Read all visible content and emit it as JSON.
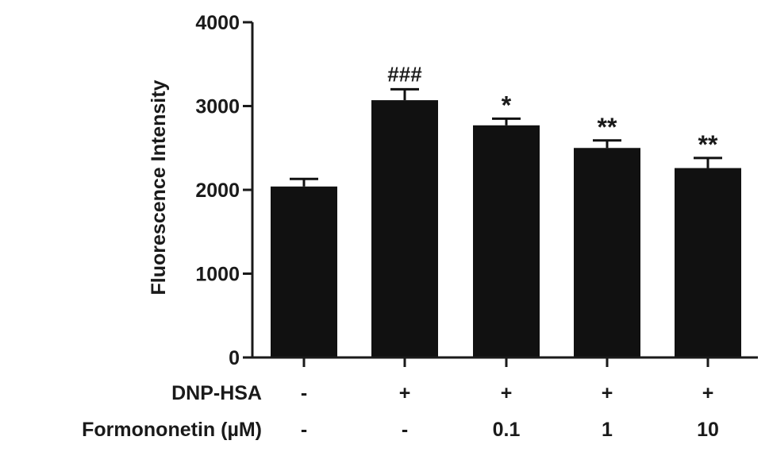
{
  "chart_data": {
    "type": "bar",
    "ylabel": "Fluorescence Intensity",
    "xlabel": "",
    "ylim": [
      0,
      4000
    ],
    "yticks": [
      0,
      1000,
      2000,
      3000,
      4000
    ],
    "grid": false,
    "bar_color": "#111111",
    "values": [
      2040,
      3070,
      2770,
      2500,
      2260
    ],
    "errors": [
      90,
      130,
      80,
      90,
      120
    ],
    "significance": [
      "",
      "###",
      "*",
      "**",
      "**"
    ],
    "condition_rows": [
      {
        "label": "DNP-HSA",
        "values": [
          "-",
          "+",
          "+",
          "+",
          "+"
        ]
      },
      {
        "label": "Formononetin (µM)",
        "values": [
          "-",
          "-",
          "0.1",
          "1",
          "10"
        ]
      }
    ]
  }
}
